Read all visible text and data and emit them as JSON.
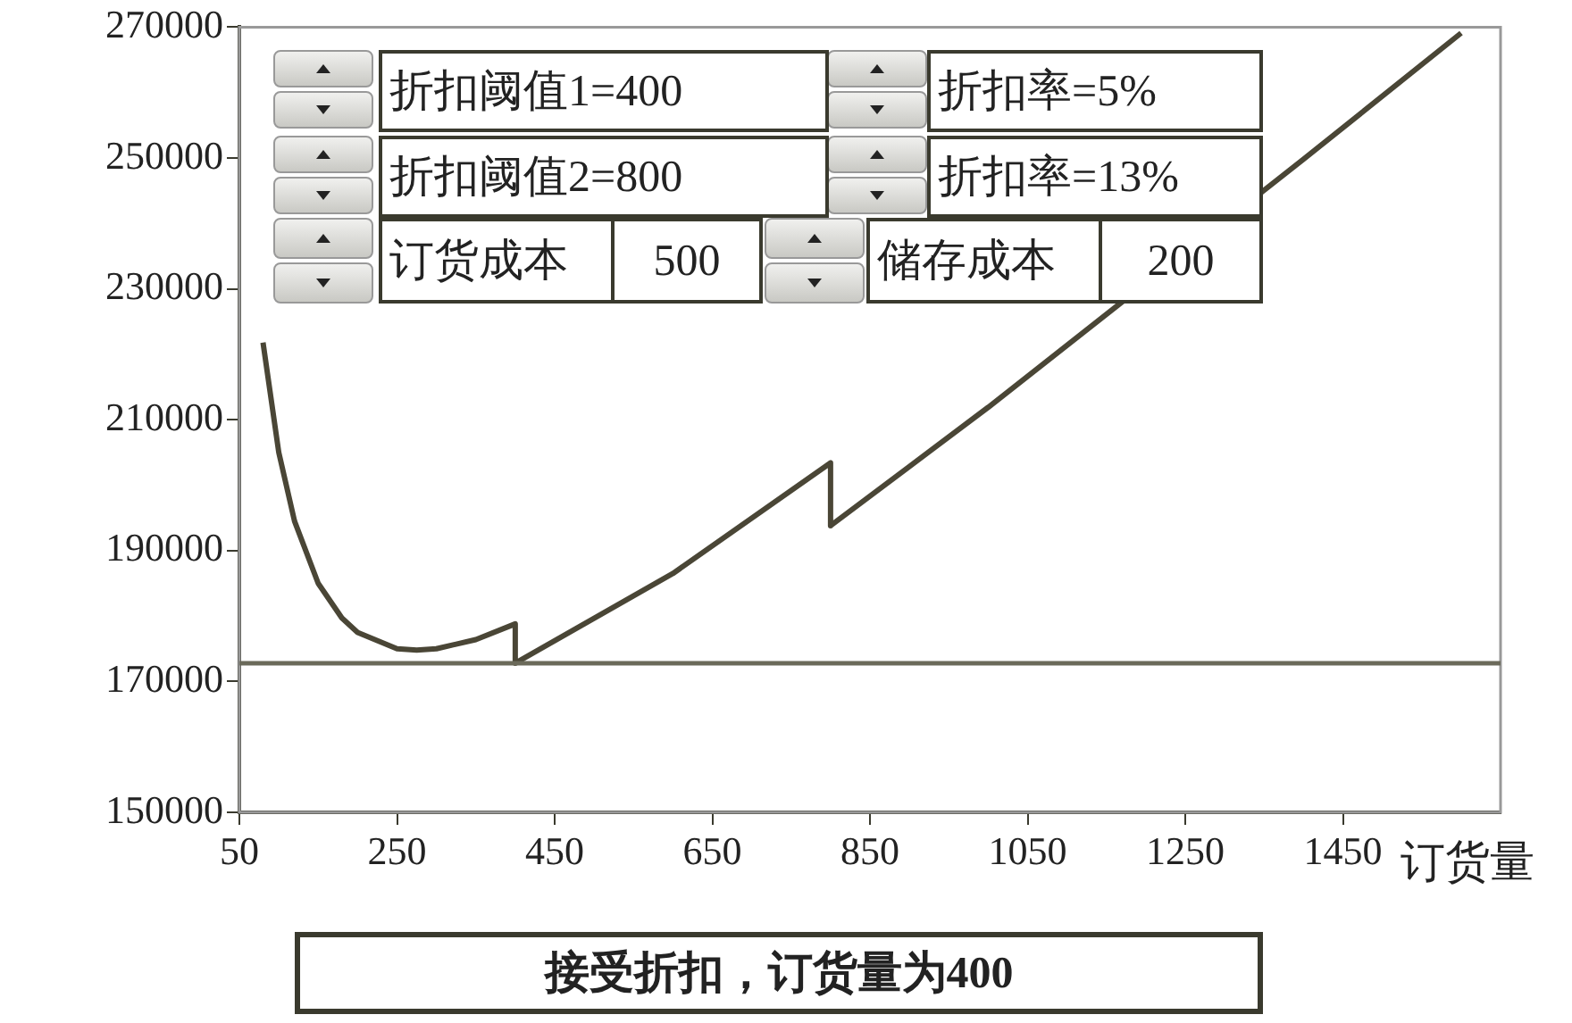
{
  "chart_data": {
    "type": "line",
    "xlabel": "订货量",
    "x": [
      80,
      100,
      120,
      150,
      180,
      200,
      250,
      275,
      300,
      350,
      400,
      400,
      600,
      800,
      800,
      1000,
      1400,
      1600
    ],
    "series": [
      {
        "color": "#4a4636",
        "values": [
          221800,
          205000,
          194500,
          185000,
          179700,
          177500,
          175000,
          174800,
          175000,
          176400,
          178800,
          172800,
          186500,
          203400,
          193800,
          211900,
          249800,
          269100
        ]
      }
    ],
    "xlim": [
      50,
      1650
    ],
    "xticks": [
      50,
      250,
      450,
      650,
      850,
      1050,
      1250,
      1450
    ],
    "ylim": [
      150000,
      270000
    ],
    "yticks": [
      150000,
      170000,
      190000,
      210000,
      230000,
      250000,
      270000
    ],
    "ref_lines": [
      {
        "axis": "y",
        "value": 172800,
        "color": "#6b6a5a"
      }
    ],
    "grid": false,
    "legend": false,
    "marker": "none",
    "line_style": "solid",
    "annotations": [
      "折扣阈值1=400",
      "折扣率=5%",
      "折扣阈值2=800",
      "折扣率=13%",
      "订货成本",
      "500",
      "储存成本",
      "200",
      "接受折扣，订货量为400"
    ]
  }
}
